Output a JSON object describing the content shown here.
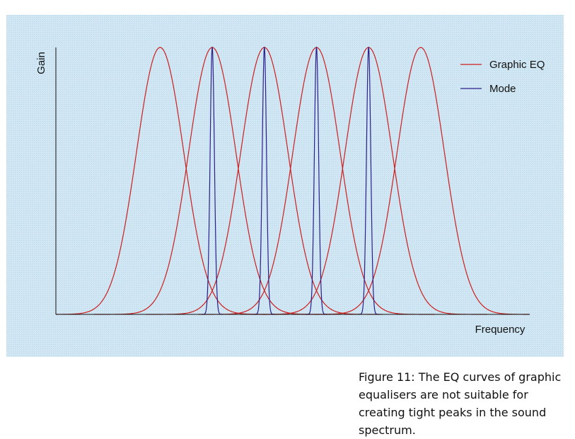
{
  "figure": {
    "background_color": "#cfe6f2",
    "caption": "Figure 11: The EQ curves of graphic equalisers are not suitable for creating tight peaks in the sound spectrum."
  },
  "chart_data": {
    "type": "line",
    "title": "",
    "xlabel": "Frequency",
    "ylabel": "Gain",
    "grid": false,
    "legend_position": "top-right",
    "axes_ticks": false,
    "xlim": [
      0,
      100
    ],
    "ylim": [
      0,
      1
    ],
    "series": [
      {
        "name": "Graphic EQ",
        "color": "#cc1f1f",
        "curve": "bell",
        "peak_gain": 1.0,
        "center_frequencies": [
          22,
          33,
          44,
          55,
          66,
          77
        ],
        "width_sigma": 5
      },
      {
        "name": "Mode",
        "color": "#2b1e8c",
        "curve": "narrow-peak",
        "peak_gain": 1.0,
        "center_frequencies": [
          33,
          44,
          55,
          66
        ],
        "width_sigma": 0.45
      }
    ]
  }
}
